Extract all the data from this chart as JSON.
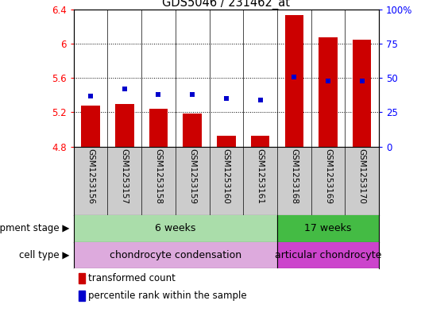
{
  "title": "GDS5046 / 231462_at",
  "samples": [
    "GSM1253156",
    "GSM1253157",
    "GSM1253158",
    "GSM1253159",
    "GSM1253160",
    "GSM1253161",
    "GSM1253168",
    "GSM1253169",
    "GSM1253170"
  ],
  "bar_values": [
    5.28,
    5.3,
    5.24,
    5.19,
    4.93,
    4.93,
    6.33,
    6.07,
    6.05
  ],
  "dot_values": [
    37,
    42,
    38,
    38,
    35,
    34,
    51,
    48,
    48
  ],
  "ylim_left": [
    4.8,
    6.4
  ],
  "ylim_right": [
    0,
    100
  ],
  "yticks_left": [
    4.8,
    5.2,
    5.6,
    6.0,
    6.4
  ],
  "yticks_right": [
    0,
    25,
    50,
    75,
    100
  ],
  "bar_color": "#cc0000",
  "dot_color": "#0000cc",
  "plot_bg": "#ffffff",
  "xlabels_bg": "#cccccc",
  "dev_stage_colors": [
    "#aaddaa",
    "#44bb44"
  ],
  "cell_type_colors": [
    "#ddaadd",
    "#cc44cc"
  ],
  "dev_stage_labels": [
    "6 weeks",
    "17 weeks"
  ],
  "cell_type_labels": [
    "chondrocyte condensation",
    "articular chondrocyte"
  ],
  "group_split": 6,
  "dev_stage_row_label": "development stage",
  "cell_type_row_label": "cell type",
  "legend_bar_label": "transformed count",
  "legend_dot_label": "percentile rank within the sample",
  "bar_width": 0.55
}
